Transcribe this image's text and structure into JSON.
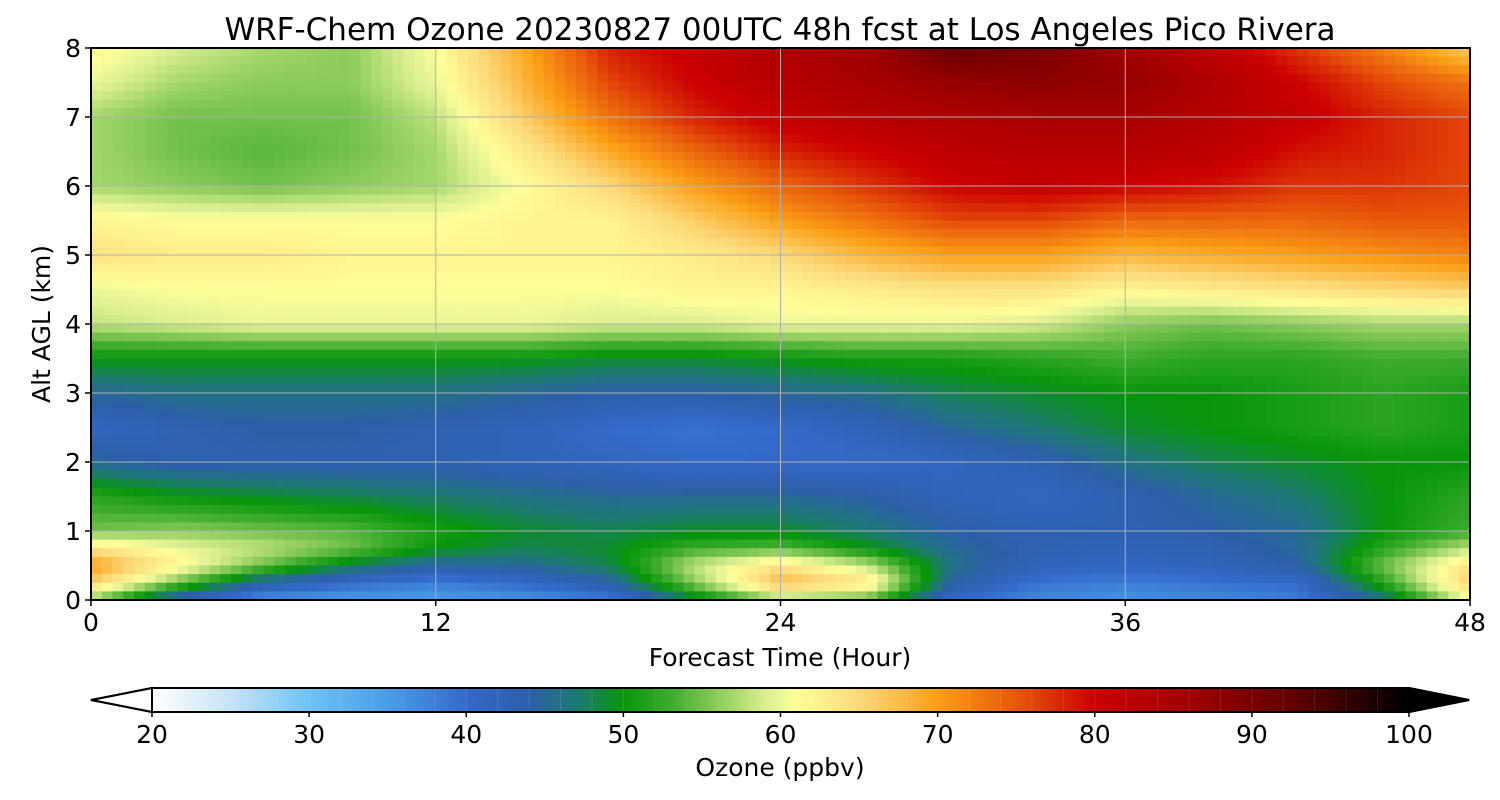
{
  "chart_data": {
    "type": "heatmap",
    "title": "WRF-Chem Ozone  20230827 00UTC 48h fcst at Los Angeles Pico Rivera",
    "xlabel": "Forecast Time (Hour)",
    "ylabel": "Alt AGL (km)",
    "xlim": [
      0,
      48
    ],
    "ylim": [
      0,
      8
    ],
    "xticks": [
      0,
      12,
      24,
      36,
      48
    ],
    "yticks": [
      0,
      1,
      2,
      3,
      4,
      5,
      6,
      7,
      8
    ],
    "grid": true,
    "x": [
      0,
      3,
      6,
      9,
      12,
      15,
      18,
      21,
      24,
      27,
      30,
      33,
      36,
      39,
      42,
      45,
      48
    ],
    "y": [
      0,
      0.25,
      0.5,
      0.75,
      1,
      1.5,
      2,
      2.5,
      3,
      3.5,
      4,
      4.5,
      5,
      5.5,
      6,
      6.5,
      7,
      7.5,
      8
    ],
    "values": [
      [
        56,
        42,
        36,
        35,
        35,
        36,
        38,
        48,
        56,
        54,
        40,
        37,
        36,
        37,
        38,
        46,
        60
      ],
      [
        66,
        55,
        44,
        40,
        38,
        40,
        44,
        56,
        68,
        64,
        44,
        39,
        38,
        39,
        40,
        52,
        66
      ],
      [
        70,
        62,
        55,
        48,
        44,
        45,
        48,
        58,
        64,
        58,
        46,
        42,
        41,
        42,
        44,
        55,
        64
      ],
      [
        64,
        60,
        58,
        55,
        50,
        48,
        49,
        53,
        54,
        50,
        45,
        43,
        42,
        43,
        45,
        52,
        58
      ],
      [
        55,
        56,
        55,
        54,
        51,
        49,
        48,
        49,
        49,
        47,
        44,
        43,
        43,
        44,
        45,
        50,
        53
      ],
      [
        52,
        50,
        49,
        48,
        47,
        46,
        45,
        45,
        45,
        44,
        42,
        41,
        43,
        45,
        47,
        50,
        52
      ],
      [
        45,
        43,
        43,
        43,
        43,
        42,
        41,
        40,
        40,
        40,
        41,
        43,
        46,
        48,
        49,
        50,
        50
      ],
      [
        41,
        43,
        44,
        44,
        43,
        42,
        40,
        39,
        40,
        42,
        45,
        47,
        49,
        50,
        51,
        52,
        51
      ],
      [
        45,
        46,
        46,
        46,
        46,
        45,
        44,
        44,
        45,
        46,
        48,
        49,
        50,
        50,
        51,
        52,
        51
      ],
      [
        50,
        50,
        50,
        50,
        50,
        50,
        49,
        49,
        50,
        51,
        51,
        52,
        53,
        52,
        52,
        53,
        53
      ],
      [
        58,
        59,
        60,
        60,
        60,
        60,
        59,
        59,
        60,
        60,
        60,
        59,
        56,
        55,
        56,
        57,
        57
      ],
      [
        60,
        61,
        61,
        61,
        61,
        61,
        61,
        62,
        62,
        63,
        64,
        64,
        62,
        63,
        64,
        65,
        66
      ],
      [
        64,
        63,
        63,
        62,
        62,
        62,
        62,
        63,
        65,
        68,
        70,
        70,
        68,
        69,
        70,
        71,
        72
      ],
      [
        62,
        61,
        61,
        61,
        61,
        62,
        62,
        66,
        70,
        73,
        76,
        76,
        74,
        74,
        74,
        75,
        75
      ],
      [
        57,
        56,
        55,
        56,
        57,
        61,
        65,
        70,
        74,
        77,
        80,
        81,
        80,
        79,
        77,
        77,
        76
      ],
      [
        57,
        55,
        54,
        55,
        57,
        63,
        69,
        74,
        78,
        80,
        82,
        83,
        83,
        82,
        79,
        78,
        76
      ],
      [
        57,
        55,
        55,
        55,
        58,
        66,
        73,
        78,
        81,
        83,
        84,
        85,
        85,
        83,
        81,
        78,
        76
      ],
      [
        60,
        57,
        56,
        56,
        60,
        68,
        76,
        80,
        83,
        85,
        87,
        88,
        87,
        84,
        80,
        76,
        73
      ],
      [
        62,
        59,
        57,
        56,
        61,
        69,
        78,
        81,
        84,
        86,
        92,
        90,
        86,
        82,
        77,
        72,
        66
      ]
    ],
    "colorbar": {
      "label": "Ozone  (ppbv)",
      "min": 20,
      "max": 100,
      "ticks": [
        20,
        30,
        40,
        50,
        60,
        70,
        80,
        90,
        100
      ],
      "extend": "both",
      "stops": [
        {
          "v": 20,
          "c": "#ffffff"
        },
        {
          "v": 25,
          "c": "#c6e3f7"
        },
        {
          "v": 30,
          "c": "#6ec3f5"
        },
        {
          "v": 35,
          "c": "#4a9de8"
        },
        {
          "v": 40,
          "c": "#3469c9"
        },
        {
          "v": 44,
          "c": "#2c5fa8"
        },
        {
          "v": 47,
          "c": "#1d7a72"
        },
        {
          "v": 50,
          "c": "#07960a"
        },
        {
          "v": 53,
          "c": "#3dab2f"
        },
        {
          "v": 56,
          "c": "#8ccc5a"
        },
        {
          "v": 59,
          "c": "#d9ee90"
        },
        {
          "v": 61,
          "c": "#fffe99"
        },
        {
          "v": 65,
          "c": "#fcd97a"
        },
        {
          "v": 70,
          "c": "#fb9f16"
        },
        {
          "v": 75,
          "c": "#e8580b"
        },
        {
          "v": 80,
          "c": "#cc0000"
        },
        {
          "v": 86,
          "c": "#a00000"
        },
        {
          "v": 93,
          "c": "#5c0000"
        },
        {
          "v": 100,
          "c": "#000000"
        }
      ]
    }
  }
}
